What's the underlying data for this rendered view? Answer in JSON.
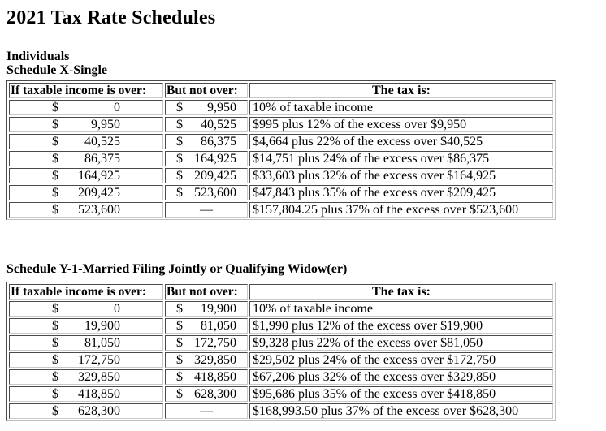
{
  "page": {
    "title": "2021 Tax Rate Schedules"
  },
  "schedules": [
    {
      "id": "x-single",
      "heading_lines": [
        "Individuals",
        "Schedule X-Single"
      ],
      "columns": [
        "If taxable income is over:",
        "But not over:",
        "The tax is:"
      ],
      "rows": [
        {
          "over": {
            "sign": "$",
            "amount": "0"
          },
          "not_over": {
            "sign": "$",
            "amount": "9,950"
          },
          "tax": "10% of taxable income"
        },
        {
          "over": {
            "sign": "$",
            "amount": "9,950"
          },
          "not_over": {
            "sign": "$",
            "amount": "40,525"
          },
          "tax": "$995 plus 12% of the excess over $9,950"
        },
        {
          "over": {
            "sign": "$",
            "amount": "40,525"
          },
          "not_over": {
            "sign": "$",
            "amount": "86,375"
          },
          "tax": "$4,664 plus 22% of the excess over $40,525"
        },
        {
          "over": {
            "sign": "$",
            "amount": "86,375"
          },
          "not_over": {
            "sign": "$",
            "amount": "164,925"
          },
          "tax": "$14,751 plus 24% of the excess over $86,375"
        },
        {
          "over": {
            "sign": "$",
            "amount": "164,925"
          },
          "not_over": {
            "sign": "$",
            "amount": "209,425"
          },
          "tax": "$33,603 plus 32% of the excess over $164,925"
        },
        {
          "over": {
            "sign": "$",
            "amount": "209,425"
          },
          "not_over": {
            "sign": "$",
            "amount": "523,600"
          },
          "tax": "$47,843 plus 35% of the excess over $209,425"
        },
        {
          "over": {
            "sign": "$",
            "amount": "523,600"
          },
          "not_over": {
            "dash": "—"
          },
          "tax": "$157,804.25 plus 37% of the excess over $523,600"
        }
      ]
    },
    {
      "id": "y1-mfj",
      "heading_lines": [
        "Schedule Y-1-Married Filing Jointly or Qualifying Widow(er)"
      ],
      "columns": [
        "If taxable income is over:",
        "But not over:",
        "The tax is:"
      ],
      "rows": [
        {
          "over": {
            "sign": "$",
            "amount": "0"
          },
          "not_over": {
            "sign": "$",
            "amount": "19,900"
          },
          "tax": "10% of taxable income"
        },
        {
          "over": {
            "sign": "$",
            "amount": "19,900"
          },
          "not_over": {
            "sign": "$",
            "amount": "81,050"
          },
          "tax": "$1,990 plus 12% of the excess over $19,900"
        },
        {
          "over": {
            "sign": "$",
            "amount": "81,050"
          },
          "not_over": {
            "sign": "$",
            "amount": "172,750"
          },
          "tax": "$9,328 plus 22% of the excess over $81,050"
        },
        {
          "over": {
            "sign": "$",
            "amount": "172,750"
          },
          "not_over": {
            "sign": "$",
            "amount": "329,850"
          },
          "tax": "$29,502 plus 24% of the excess over $172,750"
        },
        {
          "over": {
            "sign": "$",
            "amount": "329,850"
          },
          "not_over": {
            "sign": "$",
            "amount": "418,850"
          },
          "tax": "$67,206 plus 32% of the excess over $329,850"
        },
        {
          "over": {
            "sign": "$",
            "amount": "418,850"
          },
          "not_over": {
            "sign": "$",
            "amount": "628,300"
          },
          "tax": "$95,686 plus 35% of the excess over $418,850"
        },
        {
          "over": {
            "sign": "$",
            "amount": "628,300"
          },
          "not_over": {
            "dash": "—"
          },
          "tax": "$168,993.50 plus 37% of the excess over $628,300"
        }
      ]
    }
  ]
}
